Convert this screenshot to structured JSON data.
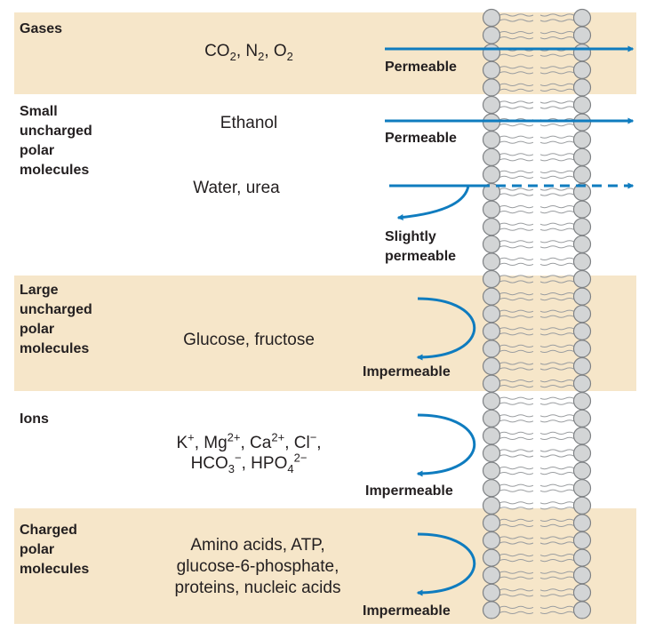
{
  "colors": {
    "band": "#f6e6c9",
    "arrow": "#0f7cbf",
    "lipid_head": "#d3d5d6",
    "lipid_outline": "#7f8285",
    "tail": "#9a9da0"
  },
  "rows": [
    {
      "category": "Gases",
      "labels": [
        "Permeable"
      ]
    },
    {
      "category": "Small\nuncharged\npolar\nmolecules",
      "molecules": [
        "Ethanol",
        "Water, urea"
      ],
      "labels": [
        "Permeable",
        "Slightly\npermeable"
      ]
    },
    {
      "category": "Large\nuncharged\npolar\nmolecules",
      "molecules": [
        "Glucose, fructose"
      ],
      "labels": [
        "Impermeable"
      ]
    },
    {
      "category": "Ions",
      "labels": [
        "Impermeable"
      ]
    },
    {
      "category": "Charged\npolar\nmolecules",
      "molecules": [
        "Amino acids, ATP,\nglucose-6-phosphate,\nproteins, nucleic acids"
      ],
      "labels": [
        "Impermeable"
      ]
    }
  ],
  "formulas": {
    "gases": {
      "co": "CO",
      "co_sub": "2",
      "n": ", N",
      "n_sub": "2",
      "o": ", O",
      "o_sub": "2"
    },
    "ions": {
      "k": "K",
      "k_sup": "+",
      "mg": ", Mg",
      "mg_sup": "2+",
      "ca": ", Ca",
      "ca_sup": "2+",
      "cl": ", Cl",
      "cl_sup": "−",
      "comma1": ",",
      "hco": "HCO",
      "hco_sub": "3",
      "hco_sup": "−",
      "hpo": ", HPO",
      "hpo_sub": "4",
      "hpo_sup": "2−"
    }
  }
}
